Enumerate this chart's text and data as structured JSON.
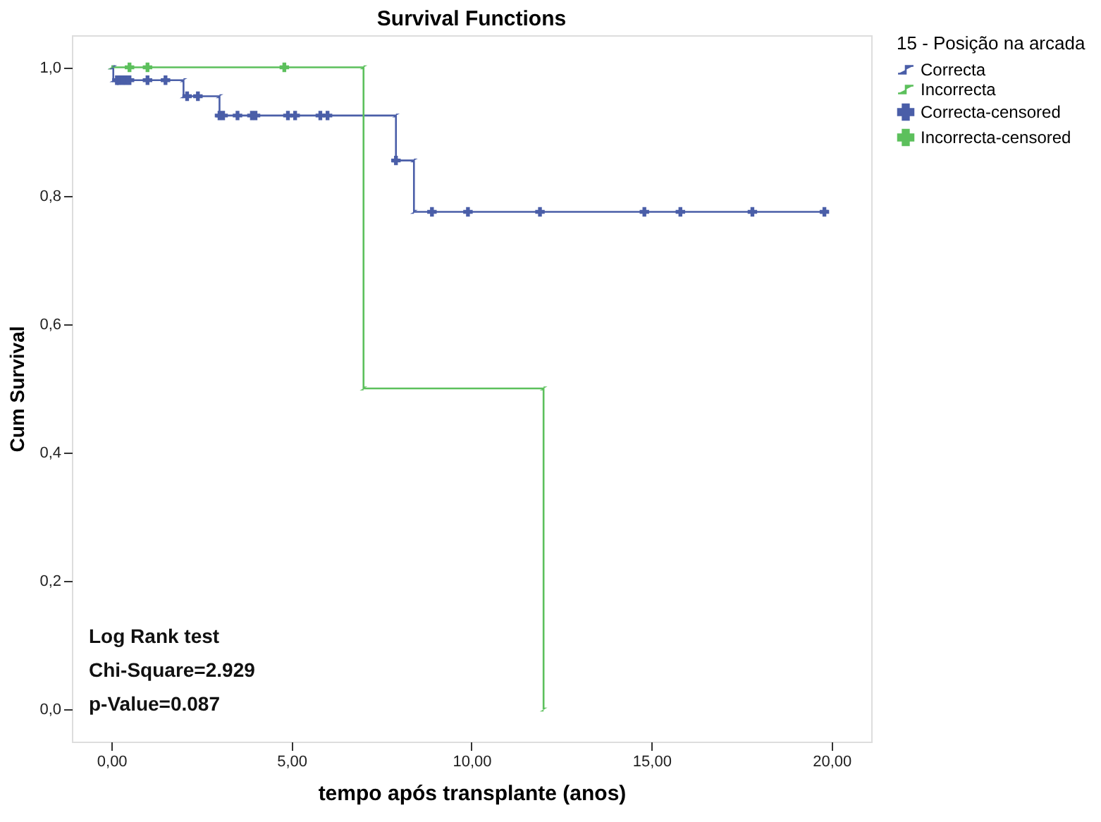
{
  "chart_data": {
    "type": "line",
    "title": "Survival Functions",
    "xlabel": "tempo após transplante (anos)",
    "ylabel": "Cum Survival",
    "legend_title": "15 - Posição na arcada",
    "legend": "top right",
    "grid": false,
    "xlim": [
      -1.1,
      21.1
    ],
    "ylim": [
      -0.05,
      1.05
    ],
    "xticks": [
      {
        "value": 0,
        "label": "0,00"
      },
      {
        "value": 5,
        "label": "5,00"
      },
      {
        "value": 10,
        "label": "10,00"
      },
      {
        "value": 15,
        "label": "15,00"
      },
      {
        "value": 20,
        "label": "20,00"
      }
    ],
    "yticks": [
      {
        "value": 0,
        "label": "0,0"
      },
      {
        "value": 0.2,
        "label": "0,2"
      },
      {
        "value": 0.4,
        "label": "0,4"
      },
      {
        "value": 0.6,
        "label": "0,6"
      },
      {
        "value": 0.8,
        "label": "0,8"
      },
      {
        "value": 1,
        "label": "1,0"
      }
    ],
    "series": [
      {
        "name": "Correcta",
        "type": "line",
        "color": "#4a5ea8",
        "x": [
          0,
          0.05,
          0.05,
          2,
          2,
          3,
          3,
          7.9,
          7.9,
          8.4,
          8.4,
          19.8
        ],
        "values": [
          1,
          1,
          0.98,
          0.98,
          0.955,
          0.955,
          0.925,
          0.925,
          0.855,
          0.855,
          0.775,
          0.775
        ]
      },
      {
        "name": "Incorrecta",
        "type": "line",
        "color": "#5cc05c",
        "x": [
          0,
          7,
          7,
          12,
          12
        ],
        "values": [
          1,
          1,
          0.5,
          0.5,
          0
        ]
      },
      {
        "name": "Correcta-censored",
        "type": "scatter",
        "marker": "cross",
        "color": "#4a5ea8",
        "x": [
          0.15,
          0.2,
          0.3,
          0.4,
          0.5,
          1.0,
          1.5,
          2.1,
          2.4,
          3.0,
          3.1,
          3.5,
          3.9,
          4.0,
          4.9,
          5.1,
          5.8,
          6.0,
          7.9,
          8.9,
          9.9,
          11.9,
          14.8,
          15.8,
          17.8,
          19.8
        ],
        "values": [
          0.98,
          0.98,
          0.98,
          0.98,
          0.98,
          0.98,
          0.98,
          0.955,
          0.955,
          0.925,
          0.925,
          0.925,
          0.925,
          0.925,
          0.925,
          0.925,
          0.925,
          0.925,
          0.855,
          0.775,
          0.775,
          0.775,
          0.775,
          0.775,
          0.775,
          0.775
        ]
      },
      {
        "name": "Incorrecta-censored",
        "type": "scatter",
        "marker": "cross",
        "color": "#5cc05c",
        "x": [
          0.5,
          1.0,
          4.8
        ],
        "values": [
          1,
          1,
          1
        ]
      }
    ],
    "annotations": [
      "Log Rank test",
      "Chi-Square=2.929",
      "p-Value=0.087"
    ]
  }
}
